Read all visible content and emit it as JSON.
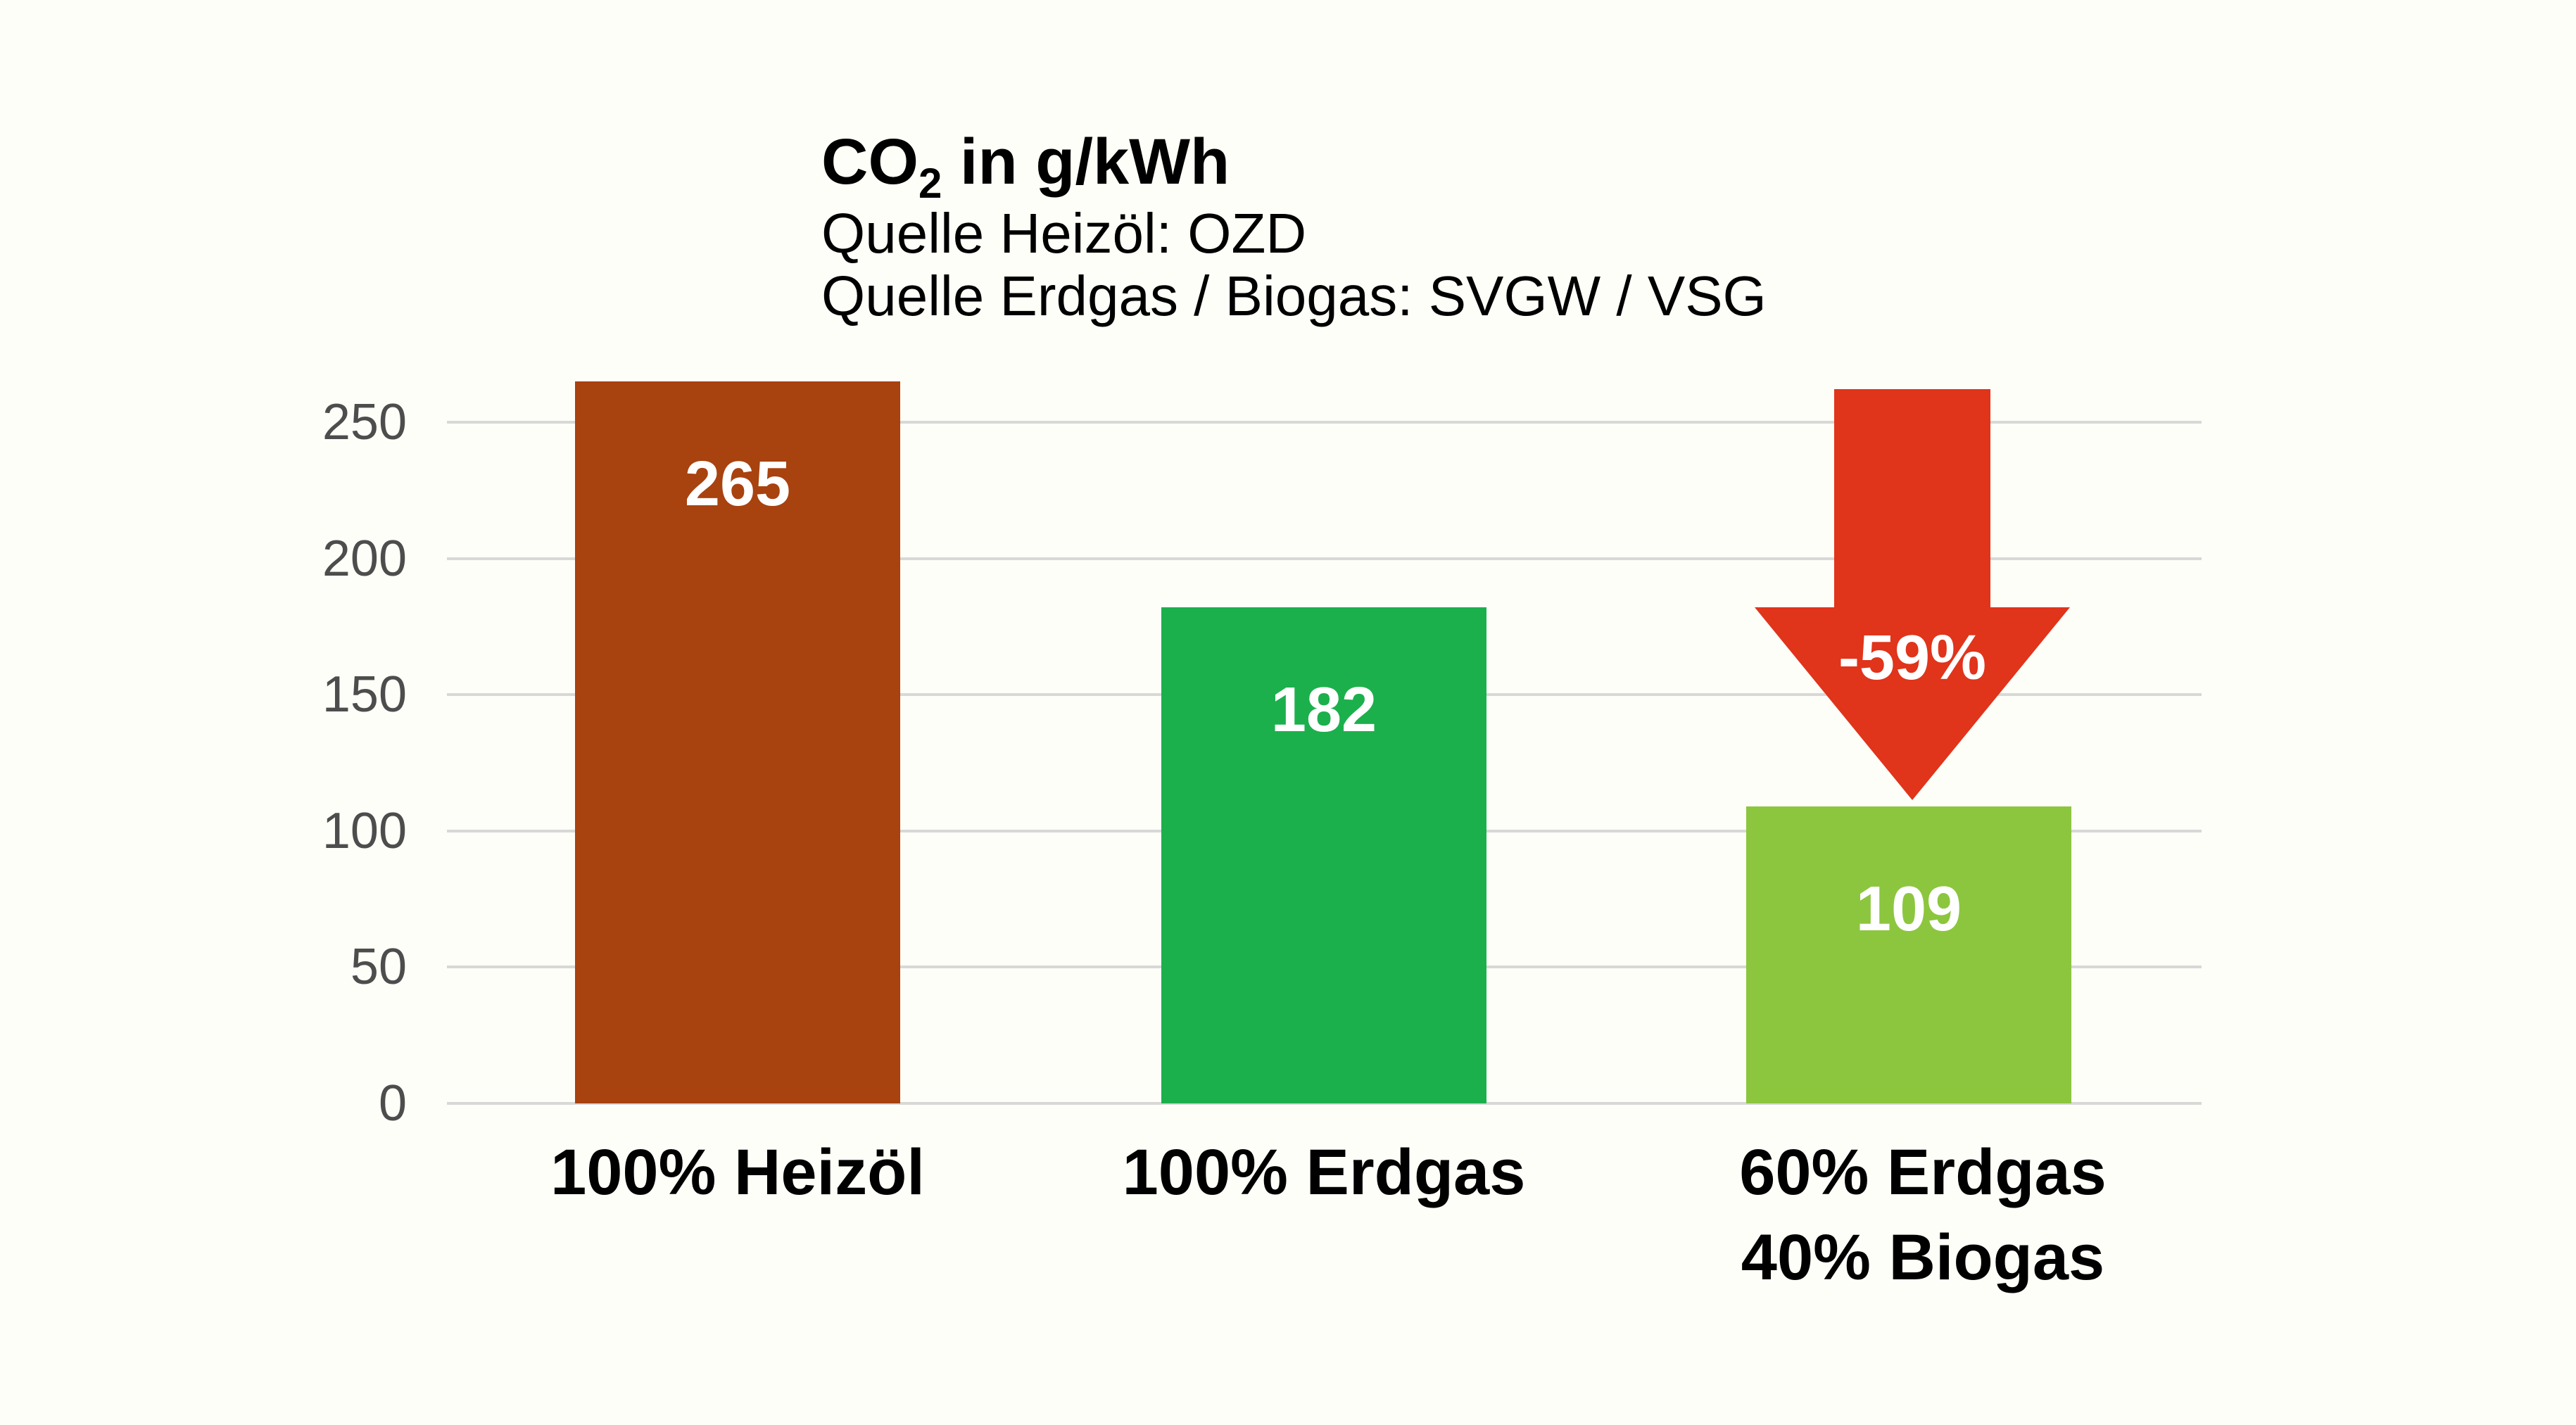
{
  "colors": {
    "background": "#FDFEF8",
    "gridline": "#D8D8D8",
    "tick_text": "#4D4D4D",
    "text": "#000000",
    "bar_label_text": "#FFFFFF",
    "arrow": "#E0341B"
  },
  "header": {
    "title_prefix": "CO",
    "title_sub": "2",
    "title_suffix": " in g/kWh",
    "source_line1": "Quelle Heizöl: OZD",
    "source_line2": "Quelle Erdgas / Biogas: SVGW / VSG"
  },
  "chart_data": {
    "type": "bar",
    "title": "CO2 in g/kWh",
    "subtitle": [
      "Quelle Heizöl: OZD",
      "Quelle Erdgas / Biogas: SVGW / VSG"
    ],
    "categories": [
      "100% Heizöl",
      "100% Erdgas",
      "60% Erdgas 40% Biogas"
    ],
    "values": [
      265,
      182,
      109
    ],
    "colors": [
      "#A8420F",
      "#1CB04C",
      "#8CC63E"
    ],
    "unit": "g/kWh",
    "ylabel": "",
    "xlabel": "",
    "ylim": [
      0,
      250
    ],
    "yticks": [
      0,
      50,
      100,
      150,
      200,
      250
    ],
    "grid": true,
    "legend": "none",
    "annotation": {
      "text": "-59%",
      "shape": "down-arrow",
      "color": "#E0341B",
      "target_category": "60% Erdgas 40% Biogas"
    }
  },
  "xlabels": [
    [
      "100% Heizöl"
    ],
    [
      "100% Erdgas"
    ],
    [
      "60% Erdgas",
      "40% Biogas"
    ]
  ]
}
